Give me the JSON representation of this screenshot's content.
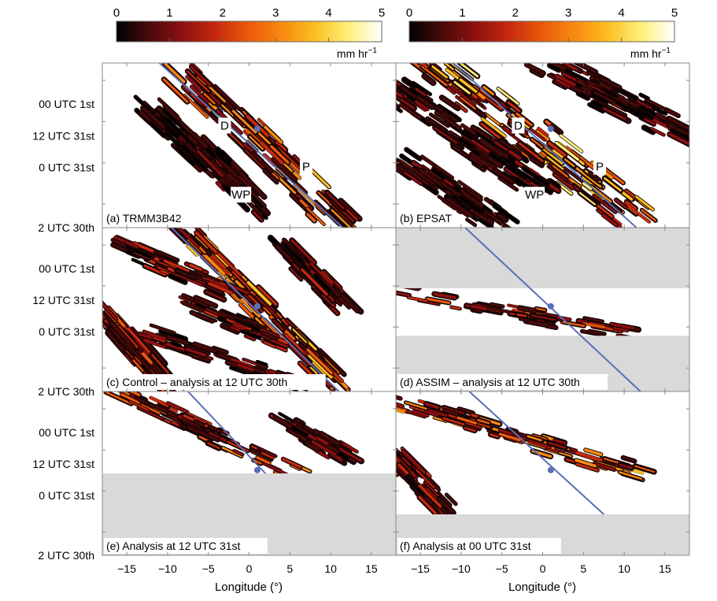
{
  "colorbars": [
    {
      "id": "left",
      "ticks": [
        "0",
        "1",
        "2",
        "3",
        "4",
        "5"
      ],
      "unit": "mm hr",
      "unit_exp": "−1"
    },
    {
      "id": "right",
      "ticks": [
        "0",
        "1",
        "2",
        "3",
        "4",
        "5"
      ],
      "unit": "mm hr",
      "unit_exp": "−1"
    }
  ],
  "colors": {
    "cmap": [
      "#000000",
      "#4a0a0a",
      "#8e1010",
      "#c62a0e",
      "#ea5a0a",
      "#f88a10",
      "#fcbf22",
      "#fdf07a",
      "#ffffff"
    ],
    "trajectory": "#5a6fb8",
    "missing": "#d9d9d9",
    "frame": "#888888"
  },
  "chart_data": [
    {
      "type": "heatmap",
      "panel": "a",
      "label": "(a) TRMM3B42",
      "x_range": [
        -18,
        18
      ],
      "x_ticks": [
        -15,
        -10,
        -5,
        0,
        5,
        10,
        15
      ],
      "y_tick_labels": [
        "00 UTC 1st",
        "12 UTC 31st",
        "0 UTC 31st",
        "2 UTC 30th"
      ],
      "trajectory": {
        "x": [
          -11,
          11.5
        ],
        "y": [
          1,
          0
        ],
        "marker": {
          "x": 1,
          "y": 0.6
        }
      },
      "annotations": [
        {
          "text": "D",
          "x": -3,
          "y": 0.62
        },
        {
          "text": "P",
          "x": 7,
          "y": 0.37
        },
        {
          "text": "WP",
          "x": -1,
          "y": 0.2
        }
      ],
      "missing_bands": [],
      "precip_bands": [
        {
          "x0": -8,
          "y0": 0.95,
          "x1": 11,
          "y1": 0.05,
          "w": 0.9,
          "peak": 3.8,
          "density": 0.65
        },
        {
          "x0": -12,
          "y0": 0.72,
          "x1": -4,
          "y1": 0.35,
          "w": 0.6,
          "peak": 1.2,
          "density": 0.35
        },
        {
          "x0": -6,
          "y0": 0.5,
          "x1": 2,
          "y1": 0.1,
          "w": 0.6,
          "peak": 1.5,
          "density": 0.4
        }
      ]
    },
    {
      "type": "heatmap",
      "panel": "b",
      "label": "(b) EPSAT",
      "x_range": [
        -18,
        18
      ],
      "x_ticks": [
        -15,
        -10,
        -5,
        0,
        5,
        10,
        15
      ],
      "y_tick_labels": [
        "00 UTC 1st",
        "12 UTC 31st",
        "0 UTC 31st",
        "2 UTC 30th"
      ],
      "trajectory": {
        "x": [
          -11,
          11.5
        ],
        "y": [
          1,
          0
        ],
        "marker": {
          "x": 1,
          "y": 0.6
        }
      },
      "annotations": [
        {
          "text": "D",
          "x": -3,
          "y": 0.62
        },
        {
          "text": "P",
          "x": 7,
          "y": 0.37
        },
        {
          "text": "WP",
          "x": -1,
          "y": 0.2
        }
      ],
      "missing_bands": [],
      "precip_bands": [
        {
          "x0": -13,
          "y0": 1.0,
          "x1": 12,
          "y1": 0.05,
          "w": 1.2,
          "peak": 4.6,
          "density": 0.85
        },
        {
          "x0": -18,
          "y0": 0.85,
          "x1": 0,
          "y1": 0.25,
          "w": 1.0,
          "peak": 1.6,
          "density": 0.7
        },
        {
          "x0": 0,
          "y0": 1.0,
          "x1": 18,
          "y1": 0.55,
          "w": 1.0,
          "peak": 1.5,
          "density": 0.6
        },
        {
          "x0": -18,
          "y0": 0.45,
          "x1": -5,
          "y1": 0.0,
          "w": 0.8,
          "peak": 1.4,
          "density": 0.55
        }
      ]
    },
    {
      "type": "heatmap",
      "panel": "c",
      "label": "(c) Control – analysis at 12 UTC 30th",
      "x_range": [
        -18,
        18
      ],
      "x_ticks": [
        -15,
        -10,
        -5,
        0,
        5,
        10,
        15
      ],
      "y_tick_labels": [
        "00 UTC 1st",
        "12 UTC 31st",
        "0 UTC 31st",
        "2 UTC 30th"
      ],
      "trajectory": {
        "x": [
          -9.5,
          11
        ],
        "y": [
          1,
          0
        ],
        "marker": {
          "x": 1,
          "y": 0.52
        }
      },
      "annotations": [],
      "missing_bands": [],
      "precip_bands": [
        {
          "x0": -8,
          "y0": 0.98,
          "x1": 11,
          "y1": 0.05,
          "w": 0.5,
          "peak": 4.5,
          "density": 0.7
        },
        {
          "x0": -16,
          "y0": 0.9,
          "x1": -2,
          "y1": 0.6,
          "w": 0.5,
          "peak": 2.5,
          "density": 0.4
        },
        {
          "x0": -18,
          "y0": 0.5,
          "x1": -10,
          "y1": 0.05,
          "w": 0.5,
          "peak": 3.0,
          "density": 0.4
        },
        {
          "x0": -12,
          "y0": 0.35,
          "x1": 6,
          "y1": 0.05,
          "w": 0.5,
          "peak": 2.0,
          "density": 0.35
        },
        {
          "x0": 5,
          "y0": 0.85,
          "x1": 11,
          "y1": 0.55,
          "w": 0.5,
          "peak": 2.0,
          "density": 0.35
        },
        {
          "x0": -8,
          "y0": 0.55,
          "x1": 4,
          "y1": 0.3,
          "w": 0.5,
          "peak": 2.2,
          "density": 0.35
        }
      ]
    },
    {
      "type": "heatmap",
      "panel": "d",
      "label": "(d) ASSIM – analysis at 12 UTC 30th",
      "x_range": [
        -18,
        18
      ],
      "x_ticks": [
        -15,
        -10,
        -5,
        0,
        5,
        10,
        15
      ],
      "y_tick_labels": [
        "00 UTC 1st",
        "12 UTC 31st",
        "0 UTC 31st",
        "2 UTC 30th"
      ],
      "trajectory": {
        "x": [
          -9.5,
          12
        ],
        "y": [
          1,
          0
        ],
        "marker": {
          "x": 1,
          "y": 0.52
        }
      },
      "annotations": [],
      "missing_bands": [
        {
          "y0": 0.63,
          "y1": 1.0
        },
        {
          "y0": 0.0,
          "y1": 0.34
        }
      ],
      "precip_bands": [
        {
          "x0": -18,
          "y0": 0.62,
          "x1": 10,
          "y1": 0.36,
          "w": 0.6,
          "peak": 2.8,
          "density": 0.35
        }
      ]
    },
    {
      "type": "heatmap",
      "panel": "e",
      "label": "(e) Analysis at 12 UTC 31st",
      "x_range": [
        -18,
        18
      ],
      "x_ticks": [
        -15,
        -10,
        -5,
        0,
        5,
        10,
        15
      ],
      "y_tick_labels": [
        "00 UTC 1st",
        "12 UTC 31st",
        "0 UTC 31st",
        "2 UTC 30th"
      ],
      "trajectory": {
        "x": [
          -7.5,
          2
        ],
        "y": [
          1,
          0.5
        ],
        "marker": {
          "x": 1,
          "y": 0.52
        }
      },
      "annotations": [],
      "missing_bands": [
        {
          "y0": 0.0,
          "y1": 0.5
        }
      ],
      "precip_bands": [
        {
          "x0": -16,
          "y0": 1.0,
          "x1": 5,
          "y1": 0.52,
          "w": 0.5,
          "peak": 3.5,
          "density": 0.45
        },
        {
          "x0": 5,
          "y0": 0.8,
          "x1": 12,
          "y1": 0.6,
          "w": 0.5,
          "peak": 1.8,
          "density": 0.35
        }
      ]
    },
    {
      "type": "heatmap",
      "panel": "f",
      "label": "(f) Analysis at 00 UTC 31st",
      "x_range": [
        -18,
        18
      ],
      "x_ticks": [
        -15,
        -10,
        -5,
        0,
        5,
        10,
        15
      ],
      "y_tick_labels": [
        "00 UTC 1st",
        "12 UTC 31st",
        "0 UTC 31st",
        "2 UTC 30th"
      ],
      "trajectory": {
        "x": [
          -9,
          7.5
        ],
        "y": [
          1,
          0.25
        ],
        "marker": {
          "x": 1,
          "y": 0.52
        }
      },
      "annotations": [],
      "missing_bands": [
        {
          "y0": 0.0,
          "y1": 0.25
        }
      ],
      "precip_bands": [
        {
          "x0": -18,
          "y0": 0.95,
          "x1": 12,
          "y1": 0.5,
          "w": 0.8,
          "peak": 3.8,
          "density": 0.6
        },
        {
          "x0": -18,
          "y0": 0.6,
          "x1": -12,
          "y1": 0.3,
          "w": 0.5,
          "peak": 2.5,
          "density": 0.4
        }
      ]
    }
  ],
  "axes": {
    "xlabel": "Longitude (°)"
  }
}
